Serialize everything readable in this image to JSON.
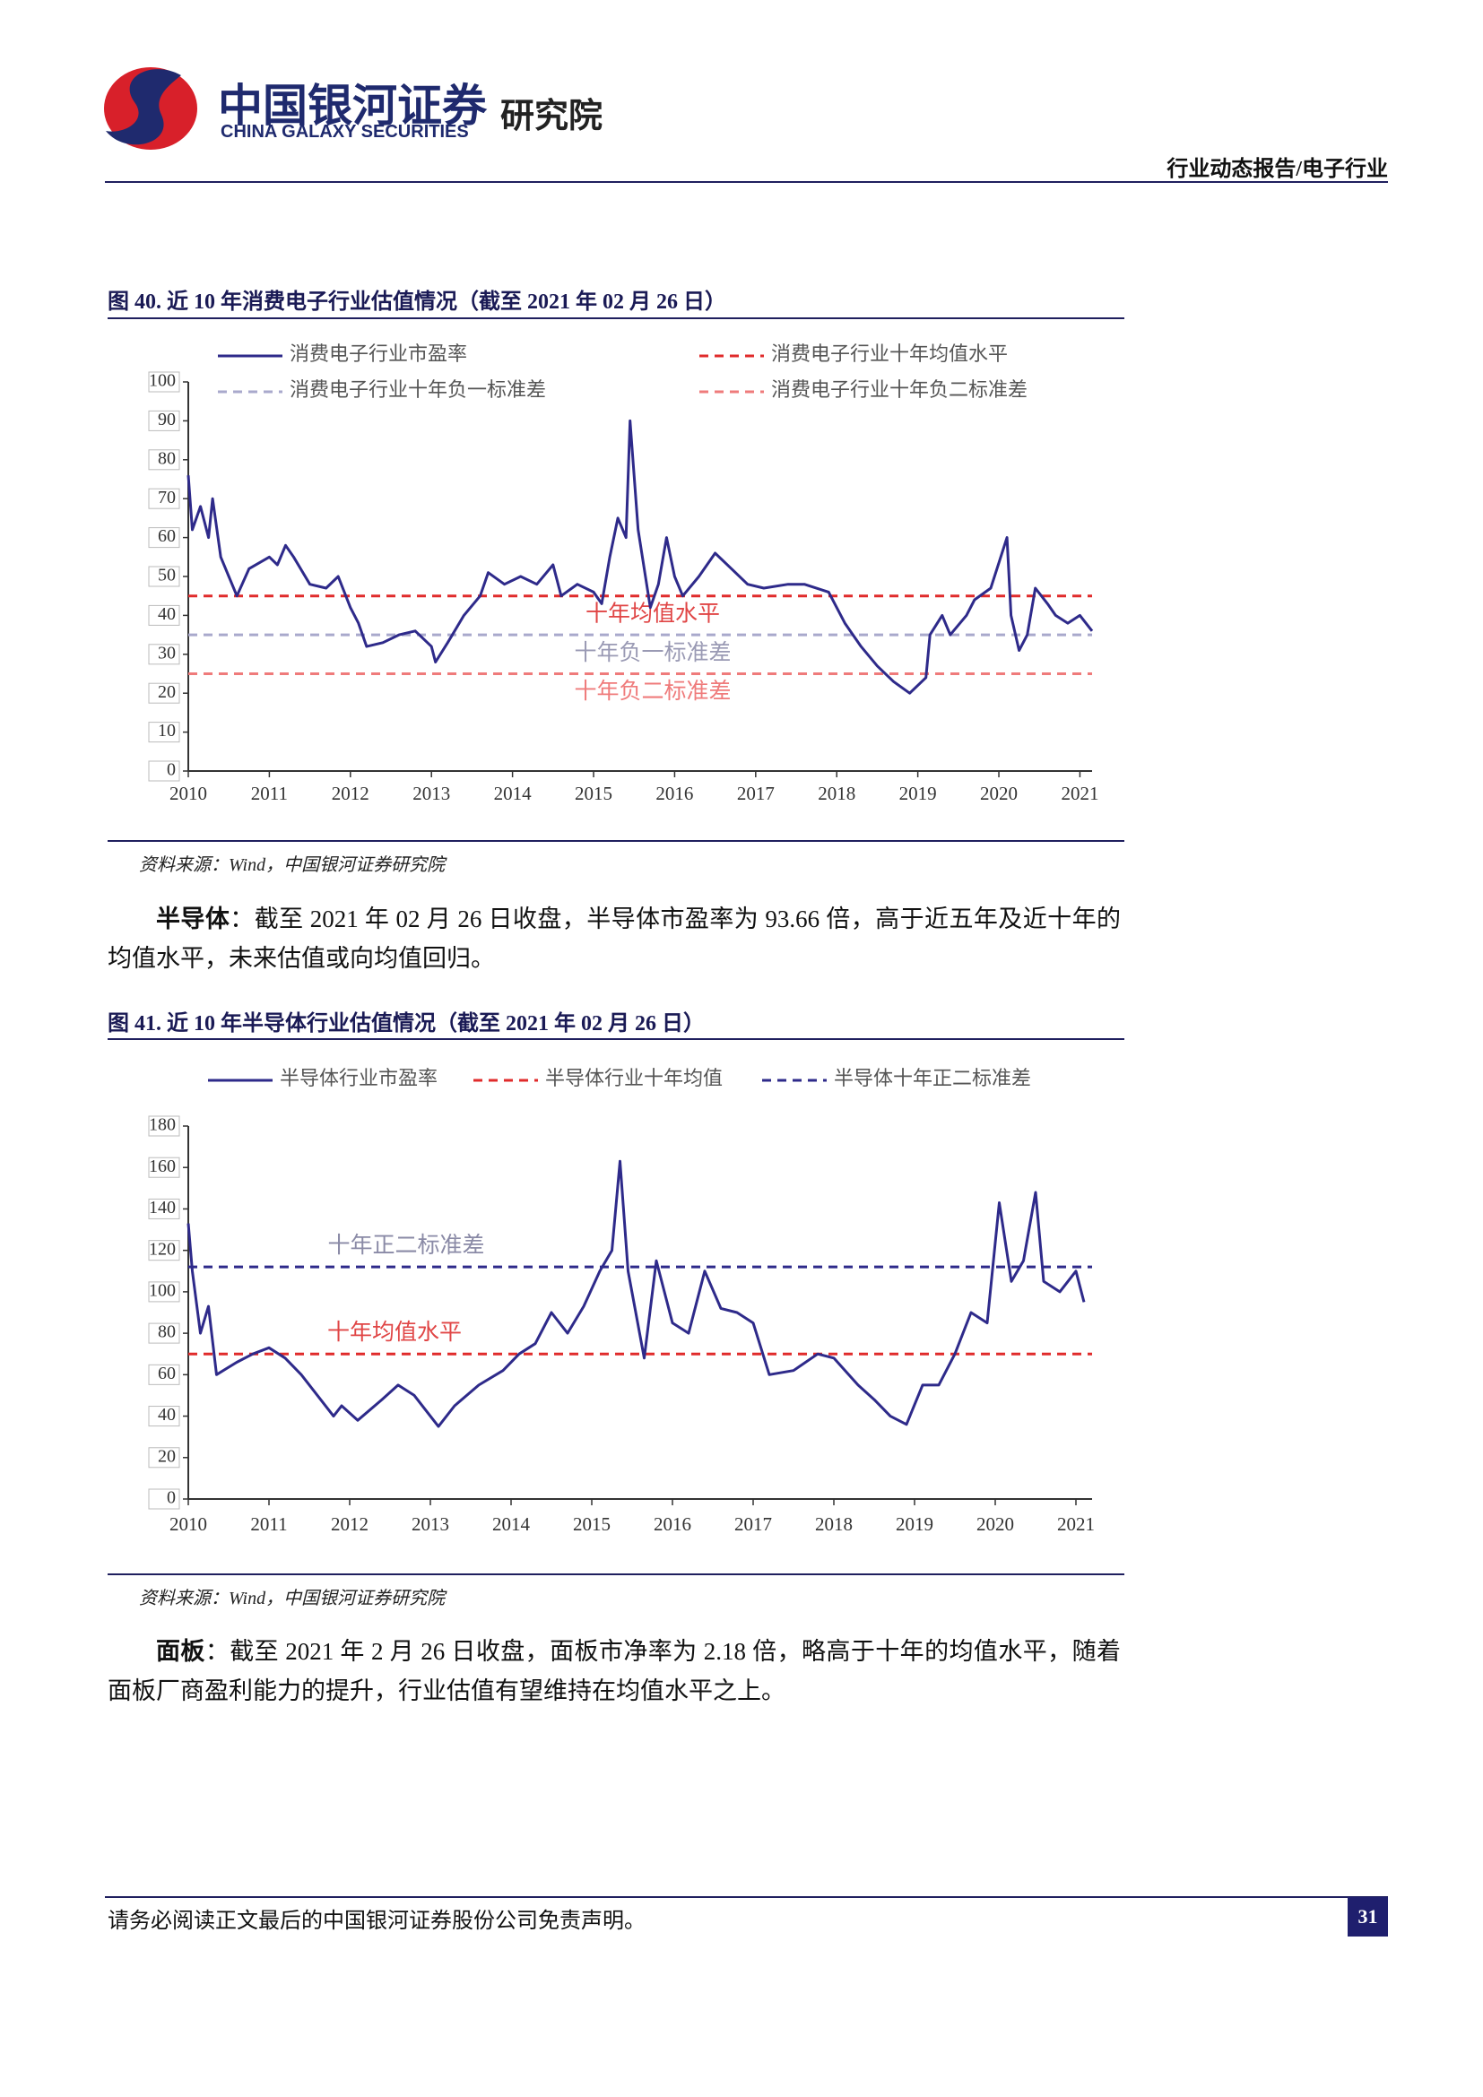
{
  "header": {
    "company_cn": "中国银河证券",
    "company_en": "CHINA GALAXY SECURITIES",
    "institute": "研究院",
    "report_type": "行业动态报告/电子行业"
  },
  "figures": [
    {
      "caption": "图 40. 近 10 年消费电子行业估值情况（截至 2021 年 02 月 26 日）",
      "source": "资料来源：Wind，中国银河证券研究院"
    },
    {
      "caption": "图 41. 近 10 年半导体行业估值情况（截至 2021 年 02 月 26 日）",
      "source": "资料来源：Wind，中国银河证券研究院"
    }
  ],
  "paragraphs": [
    {
      "lead": "半导体",
      "text": "：截至 2021 年 02 月 26 日收盘，半导体市盈率为 93.66 倍，高于近五年及近十年的均值水平，未来估值或向均值回归。"
    },
    {
      "lead": "面板",
      "text": "：截至 2021 年 2 月 26 日收盘，面板市净率为 2.18 倍，略高于十年的均值水平，随着面板厂商盈利能力的提升，行业估值有望维持在均值水平之上。"
    }
  ],
  "footer": {
    "disclaimer": "请务必阅读正文最后的中国银河证券股份公司免责声明。",
    "page": "31"
  },
  "chart_data": [
    {
      "type": "line",
      "x": [
        2010.0,
        2010.05,
        2010.15,
        2010.25,
        2010.3,
        2010.4,
        2010.5,
        2010.6,
        2010.75,
        2011.0,
        2011.1,
        2011.2,
        2011.3,
        2011.5,
        2011.7,
        2011.85,
        2012.0,
        2012.1,
        2012.2,
        2012.4,
        2012.6,
        2012.8,
        2013.0,
        2013.05,
        2013.2,
        2013.4,
        2013.6,
        2013.7,
        2013.9,
        2014.1,
        2014.3,
        2014.5,
        2014.6,
        2014.8,
        2015.0,
        2015.1,
        2015.2,
        2015.3,
        2015.4,
        2015.45,
        2015.55,
        2015.7,
        2015.8,
        2015.9,
        2016.0,
        2016.1,
        2016.3,
        2016.5,
        2016.7,
        2016.9,
        2017.1,
        2017.4,
        2017.6,
        2017.9,
        2018.1,
        2018.3,
        2018.5,
        2018.7,
        2018.9,
        2019.1,
        2019.15,
        2019.3,
        2019.4,
        2019.6,
        2019.7,
        2019.9,
        2020.1,
        2020.15,
        2020.25,
        2020.35,
        2020.45,
        2020.6,
        2020.7,
        2020.85,
        2021.0,
        2021.15
      ],
      "series": [
        {
          "name": "消费电子行业市盈率",
          "color": "#2e2a8a",
          "values": [
            76,
            62,
            68,
            60,
            70,
            55,
            50,
            45,
            52,
            55,
            53,
            58,
            55,
            48,
            47,
            50,
            42,
            38,
            32,
            33,
            35,
            36,
            32,
            28,
            33,
            40,
            45,
            51,
            48,
            50,
            48,
            53,
            45,
            48,
            46,
            43,
            55,
            65,
            60,
            90,
            62,
            42,
            48,
            60,
            50,
            45,
            50,
            56,
            52,
            48,
            47,
            48,
            48,
            46,
            38,
            32,
            27,
            23,
            20,
            24,
            35,
            40,
            35,
            40,
            44,
            47,
            60,
            40,
            31,
            35,
            47,
            43,
            40,
            38,
            40,
            36
          ]
        }
      ],
      "hlines": [
        {
          "name": "消费电子行业十年均值水平",
          "label": "十年均值水平",
          "value": 45,
          "color": "#e02b2b",
          "label_color": "#e04545"
        },
        {
          "name": "消费电子行业十年负一标准差",
          "label": "十年负一标准差",
          "value": 35,
          "color": "#a9a9cc",
          "label_color": "#9a9ab4"
        },
        {
          "name": "消费电子行业十年负二标准差",
          "label": "十年负二标准差",
          "value": 25,
          "color": "#ef7b7b",
          "label_color": "#ef7b7b"
        }
      ],
      "xlim": [
        2010,
        2021.15
      ],
      "xticks": [
        2010,
        2011,
        2012,
        2013,
        2014,
        2015,
        2016,
        2017,
        2018,
        2019,
        2020,
        2021
      ],
      "ylim": [
        0,
        100
      ],
      "yticks": [
        0,
        10,
        20,
        30,
        40,
        50,
        60,
        70,
        80,
        90,
        100
      ]
    },
    {
      "type": "line",
      "x": [
        2010.0,
        2010.05,
        2010.15,
        2010.25,
        2010.35,
        2010.6,
        2010.8,
        2011.0,
        2011.2,
        2011.4,
        2011.6,
        2011.8,
        2011.9,
        2012.1,
        2012.4,
        2012.6,
        2012.8,
        2013.0,
        2013.1,
        2013.3,
        2013.6,
        2013.9,
        2014.1,
        2014.3,
        2014.5,
        2014.7,
        2014.9,
        2015.1,
        2015.25,
        2015.35,
        2015.45,
        2015.65,
        2015.8,
        2016.0,
        2016.2,
        2016.4,
        2016.6,
        2016.8,
        2017.0,
        2017.2,
        2017.5,
        2017.8,
        2018.0,
        2018.3,
        2018.5,
        2018.7,
        2018.9,
        2019.1,
        2019.3,
        2019.5,
        2019.7,
        2019.9,
        2020.05,
        2020.2,
        2020.35,
        2020.5,
        2020.6,
        2020.8,
        2021.0,
        2021.1
      ],
      "series": [
        {
          "name": "半导体行业市盈率",
          "color": "#2e2a8a",
          "values": [
            133,
            110,
            80,
            93,
            60,
            66,
            70,
            73,
            68,
            60,
            50,
            40,
            45,
            38,
            48,
            55,
            50,
            40,
            35,
            45,
            55,
            62,
            70,
            75,
            90,
            80,
            93,
            110,
            120,
            163,
            110,
            68,
            115,
            85,
            80,
            110,
            92,
            90,
            85,
            60,
            62,
            70,
            68,
            55,
            48,
            40,
            36,
            55,
            55,
            70,
            90,
            85,
            143,
            105,
            115,
            148,
            105,
            100,
            110,
            95
          ]
        }
      ],
      "hlines": [
        {
          "name": "半导体行业十年均值",
          "label": "十年均值水平",
          "value": 70,
          "color": "#e02b2b",
          "label_color": "#e04545"
        },
        {
          "name": "半导体十年正二标准差",
          "label": "十年正二标准差",
          "value": 112,
          "color": "#2e2a8a",
          "label_color": "#8a8aa6"
        }
      ],
      "xlim": [
        2010,
        2021.2
      ],
      "xticks": [
        2010,
        2011,
        2012,
        2013,
        2014,
        2015,
        2016,
        2017,
        2018,
        2019,
        2020,
        2021
      ],
      "ylim": [
        0,
        180
      ],
      "yticks": [
        0,
        20,
        40,
        60,
        80,
        100,
        120,
        140,
        160,
        180
      ]
    }
  ]
}
